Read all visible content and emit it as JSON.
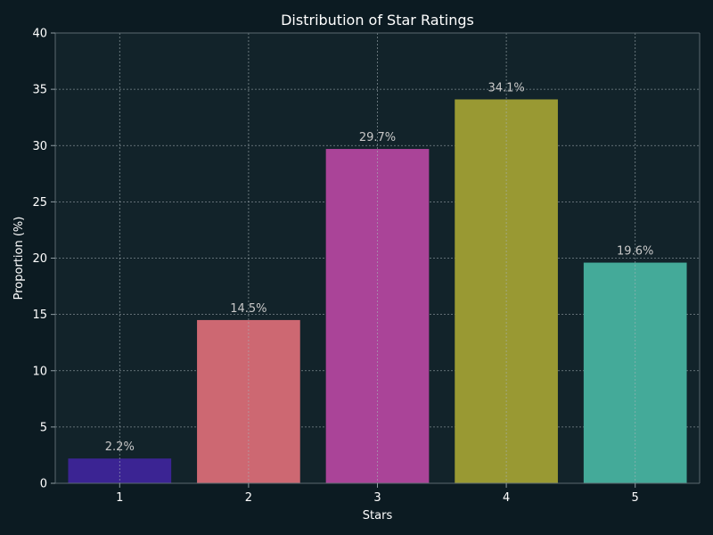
{
  "chart_data": {
    "type": "bar",
    "title": "Distribution of Star Ratings",
    "xlabel": "Stars",
    "ylabel": "Proportion (%)",
    "categories": [
      "1",
      "2",
      "3",
      "4",
      "5"
    ],
    "values": [
      2.2,
      14.5,
      29.7,
      34.1,
      19.6
    ],
    "data_labels": [
      "2.2%",
      "14.5%",
      "29.7%",
      "34.1%",
      "19.6%"
    ],
    "ylim": [
      0,
      40
    ],
    "yticks": [
      0,
      5,
      10,
      15,
      20,
      25,
      30,
      35,
      40
    ],
    "grid": true,
    "colors": [
      "#3b2493",
      "#cd6872",
      "#aa4498",
      "#999933",
      "#44aa99"
    ],
    "background": "#0c1b22",
    "plot_background": "#12232a"
  }
}
